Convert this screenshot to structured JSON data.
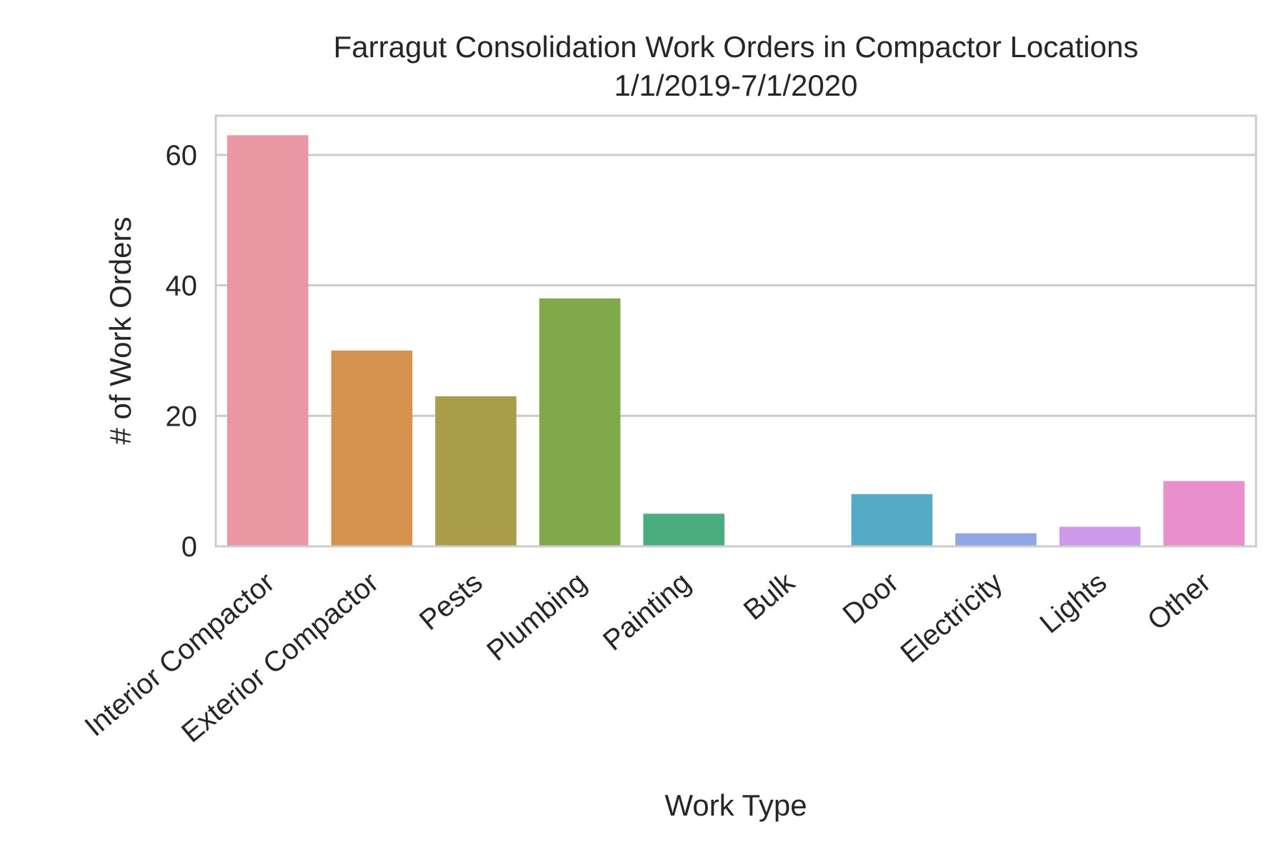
{
  "chart_data": {
    "type": "bar",
    "title": "Farragut Consolidation Work Orders in Compactor Locations",
    "subtitle": "1/1/2019-7/1/2020",
    "xlabel": "Work Type",
    "ylabel": "# of Work Orders",
    "categories": [
      "Interior Compactor",
      "Exterior Compactor",
      "Pests",
      "Plumbing",
      "Painting",
      "Bulk",
      "Door",
      "Electricity",
      "Lights",
      "Other"
    ],
    "values": [
      63,
      30,
      23,
      38,
      5,
      0,
      8,
      2,
      3,
      10
    ],
    "colors": [
      "#ea96a3",
      "#d5934f",
      "#aa9d4a",
      "#80aa4a",
      "#4aad80",
      "#4eaca1",
      "#53abc5",
      "#90a7e6",
      "#cd9bea",
      "#ea8fcd"
    ],
    "ylim": [
      0,
      66
    ],
    "yticks": [
      0,
      20,
      40,
      60
    ],
    "grid": true,
    "grid_color": "#cccccc",
    "spine_color": "#cccccc"
  }
}
